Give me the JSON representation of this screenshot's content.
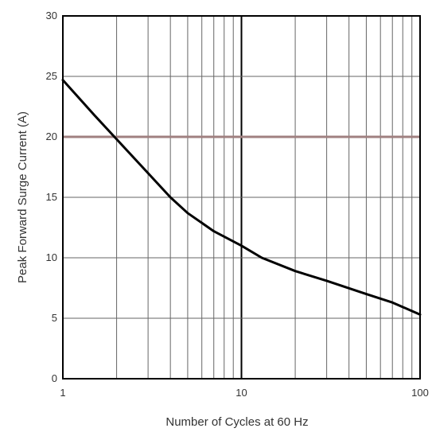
{
  "chart_data": {
    "type": "line",
    "title": "",
    "xlabel": "Number of Cycles at 60 Hz",
    "ylabel": "Peak Forward Surge Current (A)",
    "xscale": "log",
    "xlim": [
      1,
      100
    ],
    "ylim": [
      0,
      30
    ],
    "x_ticks": [
      1,
      10,
      100
    ],
    "x_tick_labels": [
      "1",
      "10",
      "100"
    ],
    "y_ticks": [
      0,
      5,
      10,
      15,
      20,
      25,
      30
    ],
    "y_tick_labels": [
      "0",
      "5",
      "10",
      "15",
      "20",
      "25",
      "30"
    ],
    "grid": true,
    "highlight_line_y": 20,
    "series": [
      {
        "x": [
          1,
          1.5,
          2,
          3,
          4,
          5,
          7,
          10,
          13,
          20,
          30,
          50,
          70,
          100
        ],
        "y": [
          24.7,
          21.8,
          19.8,
          17.0,
          15.0,
          13.7,
          12.2,
          11.0,
          10.0,
          8.9,
          8.1,
          7.0,
          6.3,
          5.3
        ]
      }
    ],
    "colors": {
      "curve": "#000000",
      "grid": "#666666",
      "highlight": "#a08080"
    }
  }
}
